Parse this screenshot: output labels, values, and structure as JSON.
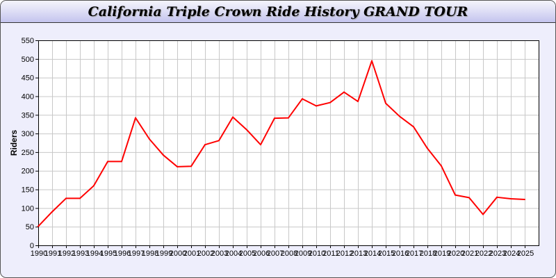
{
  "chart_data": {
    "type": "line",
    "title": "California Triple Crown Ride History GRAND TOUR",
    "xlabel": "",
    "ylabel": "Riders",
    "ylim": [
      0,
      550
    ],
    "yticks": [
      0,
      50,
      100,
      150,
      200,
      250,
      300,
      350,
      400,
      450,
      500,
      550
    ],
    "grid": true,
    "line_color": "#ff0000",
    "categories": [
      "1990",
      "1991",
      "1992",
      "1993",
      "1994",
      "1995",
      "1996",
      "1997",
      "1998",
      "1999",
      "2000",
      "2001",
      "2002",
      "2003",
      "2004",
      "2005",
      "2006",
      "2007",
      "2008",
      "2009",
      "2010",
      "2011",
      "2012",
      "2013",
      "2014",
      "2015",
      "2016",
      "2017",
      "2018",
      "2019",
      "2020",
      "2021",
      "2022",
      "2023",
      "2024",
      "2025"
    ],
    "values": [
      51,
      90,
      126,
      126,
      160,
      225,
      225,
      342,
      285,
      242,
      211,
      212,
      270,
      281,
      344,
      310,
      270,
      341,
      342,
      393,
      374,
      383,
      411,
      386,
      495,
      381,
      346,
      318,
      260,
      213,
      135,
      128,
      83,
      129,
      125,
      123
    ]
  }
}
